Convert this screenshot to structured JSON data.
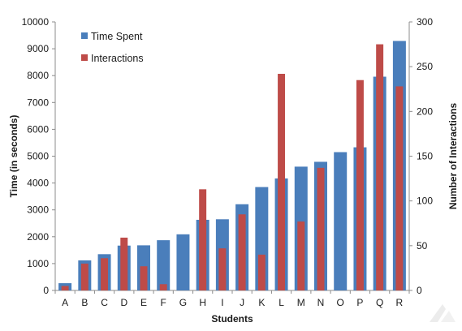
{
  "chart_data": {
    "type": "bar",
    "categories": [
      "A",
      "B",
      "C",
      "D",
      "E",
      "F",
      "G",
      "H",
      "I",
      "J",
      "K",
      "L",
      "M",
      "N",
      "O",
      "P",
      "Q",
      "R"
    ],
    "series": [
      {
        "name": "Time Spent",
        "axis": "left",
        "color": "#4a7ebb",
        "values": [
          270,
          1120,
          1350,
          1670,
          1680,
          1870,
          2090,
          2630,
          2650,
          3210,
          3850,
          4170,
          4610,
          4790,
          5150,
          5330,
          7960,
          9290
        ]
      },
      {
        "name": "Interactions",
        "axis": "right",
        "color": "#be4b48",
        "values": [
          5,
          30,
          36,
          59,
          27,
          7,
          0,
          113,
          47,
          85,
          40,
          242,
          77,
          137,
          0,
          235,
          275,
          228
        ]
      }
    ],
    "xlabel": "Students",
    "ylabel": "Time (in seconds)",
    "y2label": "Number of Interactions",
    "ylim": [
      0,
      10000
    ],
    "y2lim": [
      0,
      300
    ],
    "yticks": [
      "0",
      "1000",
      "2000",
      "3000",
      "4000",
      "5000",
      "6000",
      "7000",
      "8000",
      "9000",
      "10000"
    ],
    "y2ticks": [
      "0",
      "50",
      "100",
      "150",
      "200",
      "250",
      "300"
    ],
    "legend_position": "top-left",
    "grid": false
  }
}
